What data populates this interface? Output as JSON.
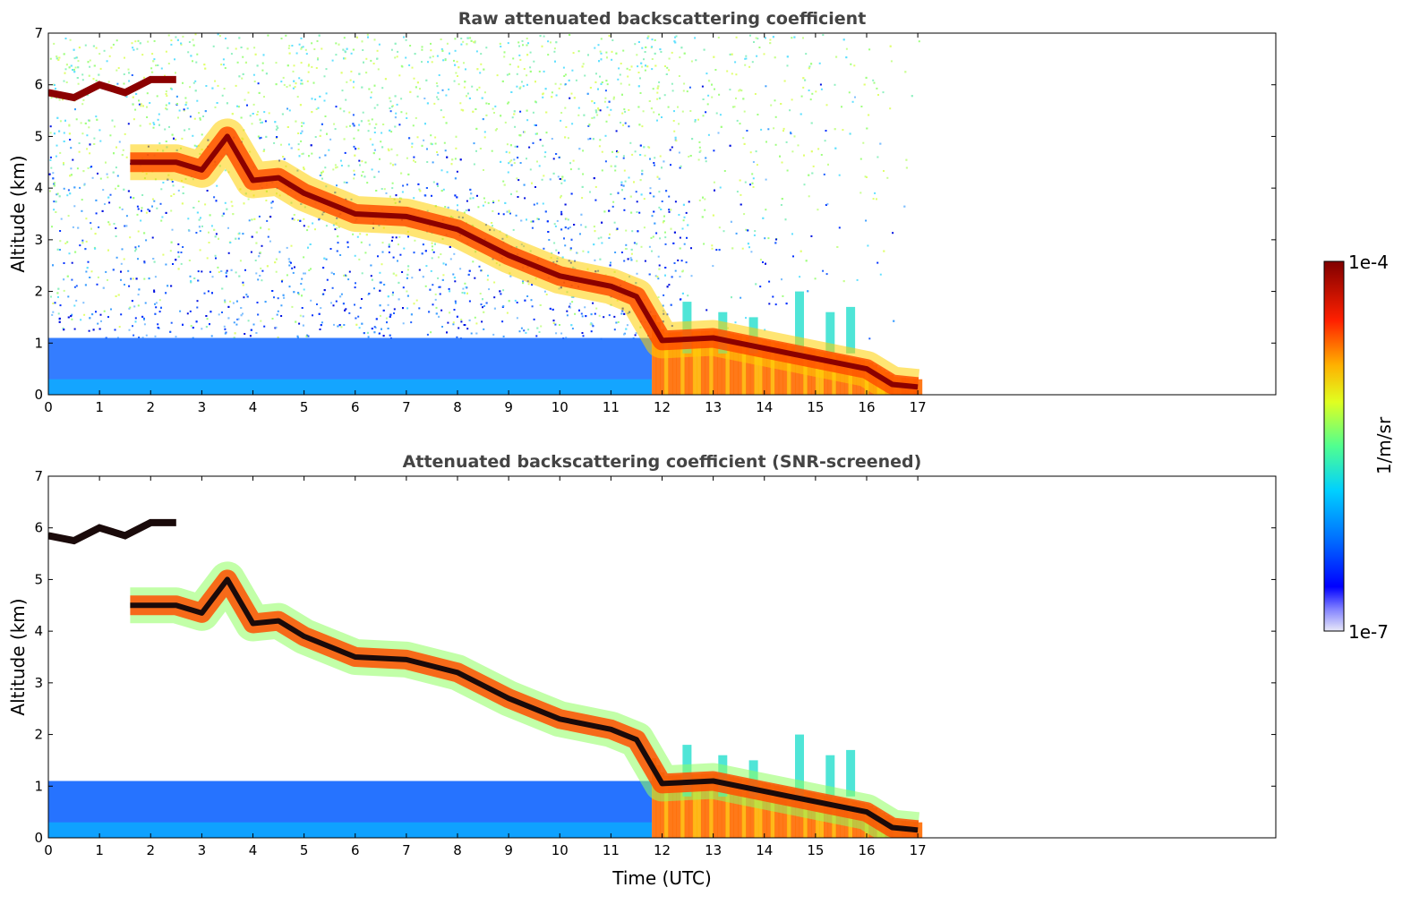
{
  "chart_data": [
    {
      "type": "heatmap",
      "title": "Raw attenuated backscattering coefficient",
      "xlabel": "",
      "ylabel": "Altitude (km)",
      "xlim": [
        0,
        24
      ],
      "ylim": [
        0,
        7
      ],
      "x_ticks": [
        "0",
        "1",
        "2",
        "3",
        "4",
        "5",
        "6",
        "7",
        "8",
        "9",
        "10",
        "11",
        "12",
        "13",
        "14",
        "15",
        "16",
        "17"
      ],
      "y_ticks": [
        "0",
        "1",
        "2",
        "3",
        "4",
        "5",
        "6",
        "7"
      ],
      "data_end_time": 17.05,
      "features": {
        "upper_layer": [
          [
            0,
            5.85
          ],
          [
            0.5,
            5.75
          ],
          [
            1,
            6.0
          ],
          [
            1.5,
            5.85
          ],
          [
            2.0,
            6.1
          ],
          [
            2.5,
            6.1
          ]
        ],
        "descending_layer": [
          [
            1.6,
            4.5
          ],
          [
            2.5,
            4.5
          ],
          [
            3,
            4.35
          ],
          [
            3.5,
            5.0
          ],
          [
            4,
            4.15
          ],
          [
            4.5,
            4.2
          ],
          [
            5,
            3.9
          ],
          [
            6,
            3.5
          ],
          [
            7,
            3.45
          ],
          [
            8,
            3.2
          ],
          [
            9,
            2.7
          ],
          [
            10,
            2.3
          ],
          [
            11,
            2.1
          ],
          [
            11.5,
            1.9
          ],
          [
            12,
            1.05
          ],
          [
            13,
            1.1
          ],
          [
            14,
            0.9
          ],
          [
            15,
            0.7
          ],
          [
            16,
            0.5
          ],
          [
            16.5,
            0.2
          ],
          [
            17,
            0.15
          ]
        ],
        "boundary_layer_top": 1.1
      }
    },
    {
      "type": "heatmap",
      "title": "Attenuated backscattering coefficient (SNR-screened)",
      "xlabel": "Time (UTC)",
      "ylabel": "Altitude (km)",
      "xlim": [
        0,
        24
      ],
      "ylim": [
        0,
        7
      ],
      "x_ticks": [
        "0",
        "1",
        "2",
        "3",
        "4",
        "5",
        "6",
        "7",
        "8",
        "9",
        "10",
        "11",
        "12",
        "13",
        "14",
        "15",
        "16",
        "17"
      ],
      "y_ticks": [
        "0",
        "1",
        "2",
        "3",
        "4",
        "5",
        "6",
        "7"
      ],
      "data_end_time": 17.05
    }
  ],
  "colorbar": {
    "label": "1/m/sr",
    "max_label": "1e-4",
    "min_label": "1e-7",
    "scale": "log",
    "colormap": [
      "#e8e8f8",
      "#0000ff",
      "#0080ff",
      "#00e0ff",
      "#80ff80",
      "#ffff00",
      "#ff8000",
      "#ff0000",
      "#800000"
    ]
  },
  "colors": {
    "noise_high": "#b8ff80",
    "noise_low": "#0030ff",
    "boundary": "#1e6fff",
    "strong": "#8b0000",
    "screened_strong": "#1a0a0a"
  }
}
